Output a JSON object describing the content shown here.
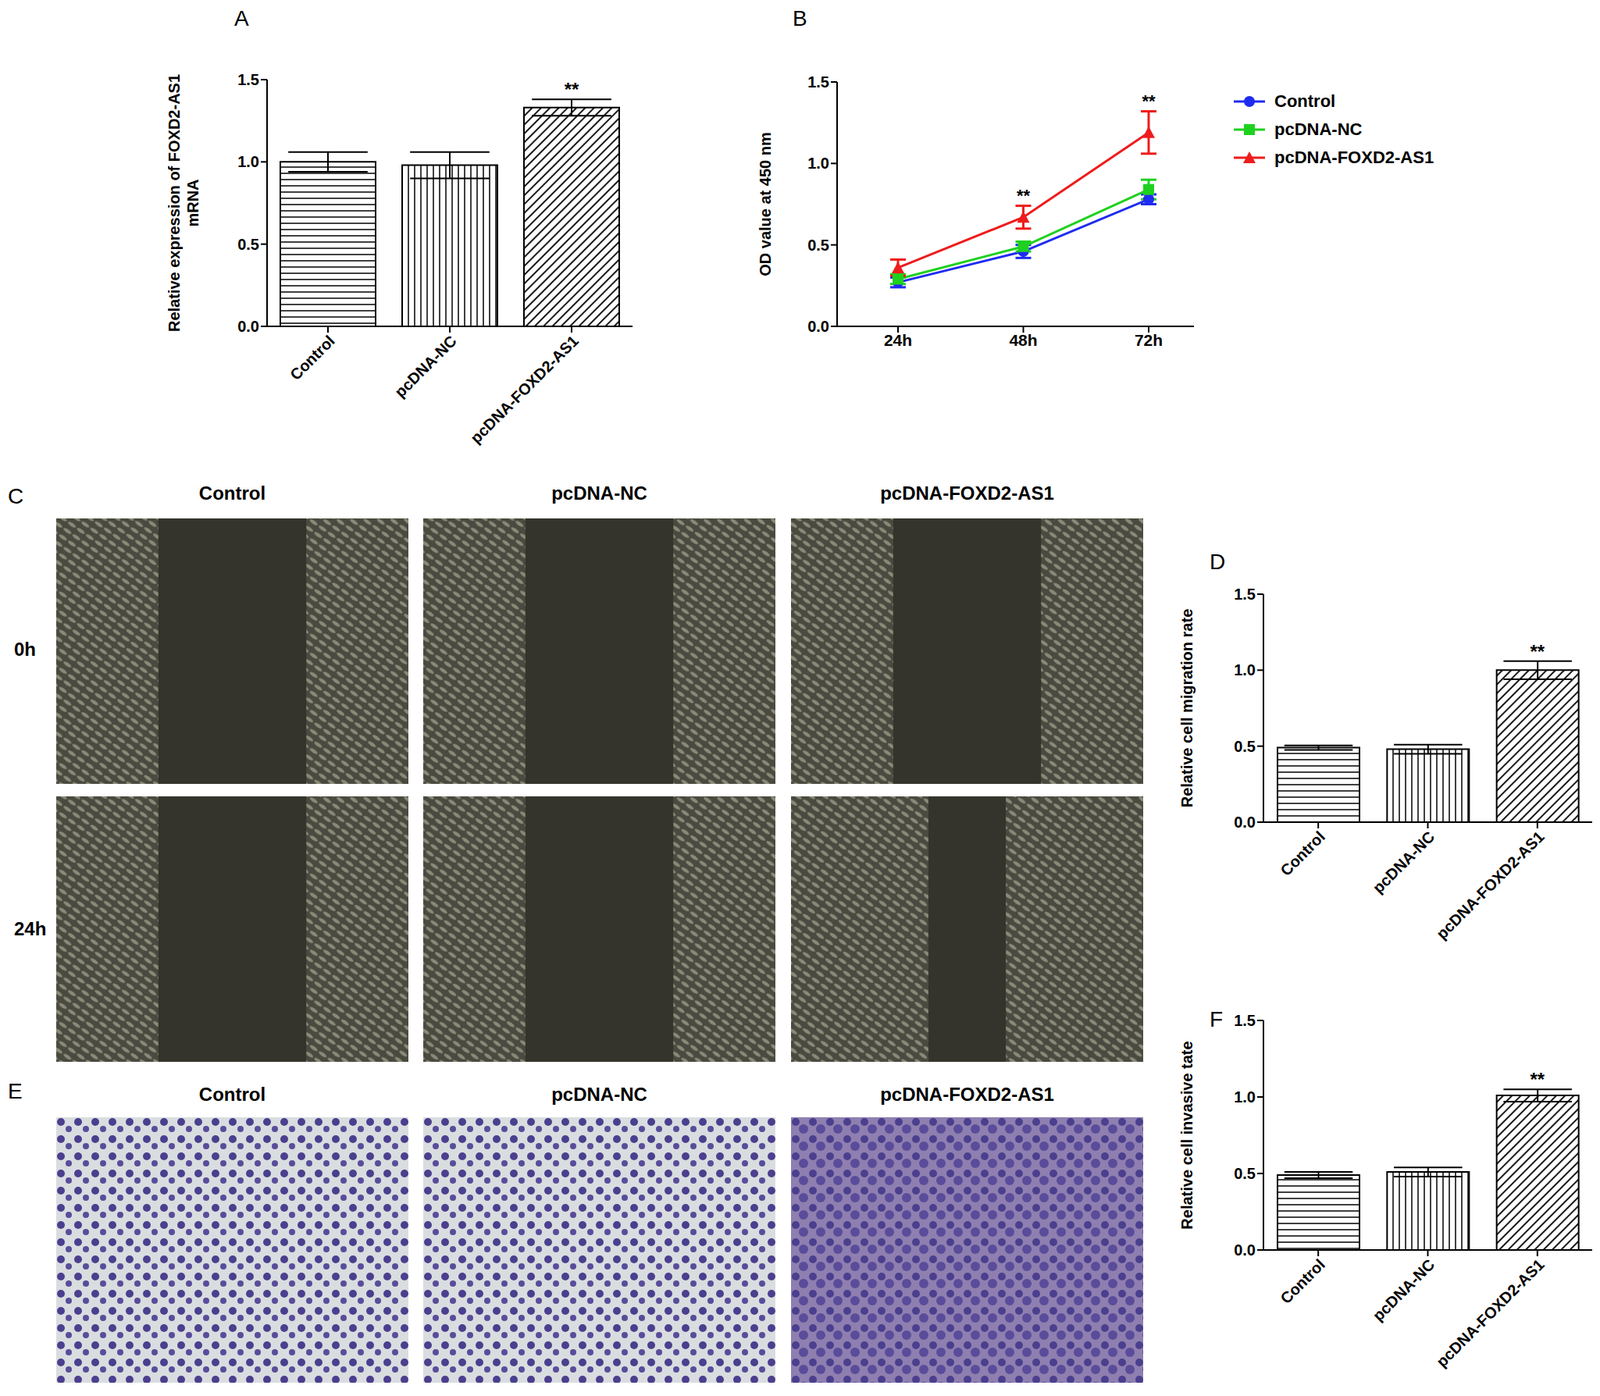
{
  "chart_data": [
    {
      "panel": "A",
      "type": "bar",
      "ylabel": "Relative expression of FOXD2-AS1\nmRNA",
      "categories": [
        "Control",
        "pcDNA-NC",
        "pcDNA-FOXD2-AS1"
      ],
      "values": [
        1.0,
        0.98,
        1.33
      ],
      "errors": [
        0.06,
        0.08,
        0.05
      ],
      "color": "#000000",
      "ylim": [
        0,
        1.5
      ],
      "yticks": [
        {
          "value": 0,
          "label": "0.0"
        },
        0.5,
        {
          "value": 1,
          "label": "1.0"
        },
        1.5
      ],
      "annotations": [
        {
          "x": "pcDNA-FOXD2-AS1",
          "text": "**"
        }
      ]
    },
    {
      "panel": "B",
      "type": "line",
      "ylabel": "OD value at 450 nm",
      "categories": [
        "24h",
        "48h",
        "72h"
      ],
      "series": [
        {
          "name": "Control",
          "color": "#1f2bf0",
          "marker": "circle",
          "values": [
            0.27,
            0.46,
            0.78
          ],
          "errors": [
            0.03,
            0.04,
            0.03
          ]
        },
        {
          "name": "pcDNA-NC",
          "color": "#1fd11f",
          "marker": "square",
          "values": [
            0.29,
            0.49,
            0.84
          ],
          "errors": [
            0.03,
            0.03,
            0.06
          ]
        },
        {
          "name": "pcDNA-FOXD2-AS1",
          "color": "#ee1c1c",
          "marker": "triangle",
          "values": [
            0.36,
            0.67,
            1.19
          ],
          "errors": [
            0.05,
            0.07,
            0.13
          ]
        }
      ],
      "ylim": [
        0,
        1.5
      ],
      "yticks": [
        {
          "value": 0,
          "label": "0.0"
        },
        0.5,
        {
          "value": 1,
          "label": "1.0"
        },
        1.5
      ],
      "legend": "right",
      "annotations": [
        {
          "x": "48h",
          "series": "pcDNA-FOXD2-AS1",
          "text": "**"
        },
        {
          "x": "72h",
          "series": "pcDNA-FOXD2-AS1",
          "text": "**"
        }
      ]
    },
    {
      "panel": "D",
      "type": "bar",
      "ylabel": "Relative cell migration rate",
      "categories": [
        "Control",
        "pcDNA-NC",
        "pcDNA-FOXD2-AS1"
      ],
      "values": [
        0.49,
        0.48,
        1.0
      ],
      "errors": [
        0.015,
        0.03,
        0.06
      ],
      "color": "#000000",
      "ylim": [
        0,
        1.5
      ],
      "yticks": [
        {
          "value": 0,
          "label": "0.0"
        },
        0.5,
        {
          "value": 1,
          "label": "1.0"
        },
        1.5
      ],
      "annotations": [
        {
          "x": "pcDNA-FOXD2-AS1",
          "text": "**"
        }
      ]
    },
    {
      "panel": "F",
      "type": "bar",
      "ylabel": "Relative cell invasive tate",
      "categories": [
        "Control",
        "pcDNA-NC",
        "pcDNA-FOXD2-AS1"
      ],
      "values": [
        0.49,
        0.51,
        1.01
      ],
      "errors": [
        0.02,
        0.03,
        0.04
      ],
      "color": "#000000",
      "ylim": [
        0,
        1.5
      ],
      "yticks": [
        {
          "value": 0,
          "label": "0.0"
        },
        0.5,
        {
          "value": 1,
          "label": "1.0"
        },
        1.5
      ],
      "annotations": [
        {
          "x": "pcDNA-FOXD2-AS1",
          "text": "**"
        }
      ]
    }
  ],
  "images": [
    {
      "panel": "C",
      "columns": [
        "Control",
        "pcDNA-NC",
        "pcDNA-FOXD2-AS1"
      ],
      "rows": [
        "0h",
        "24h"
      ]
    },
    {
      "panel": "E",
      "columns": [
        "Control",
        "pcDNA-NC",
        "pcDNA-FOXD2-AS1"
      ]
    }
  ]
}
